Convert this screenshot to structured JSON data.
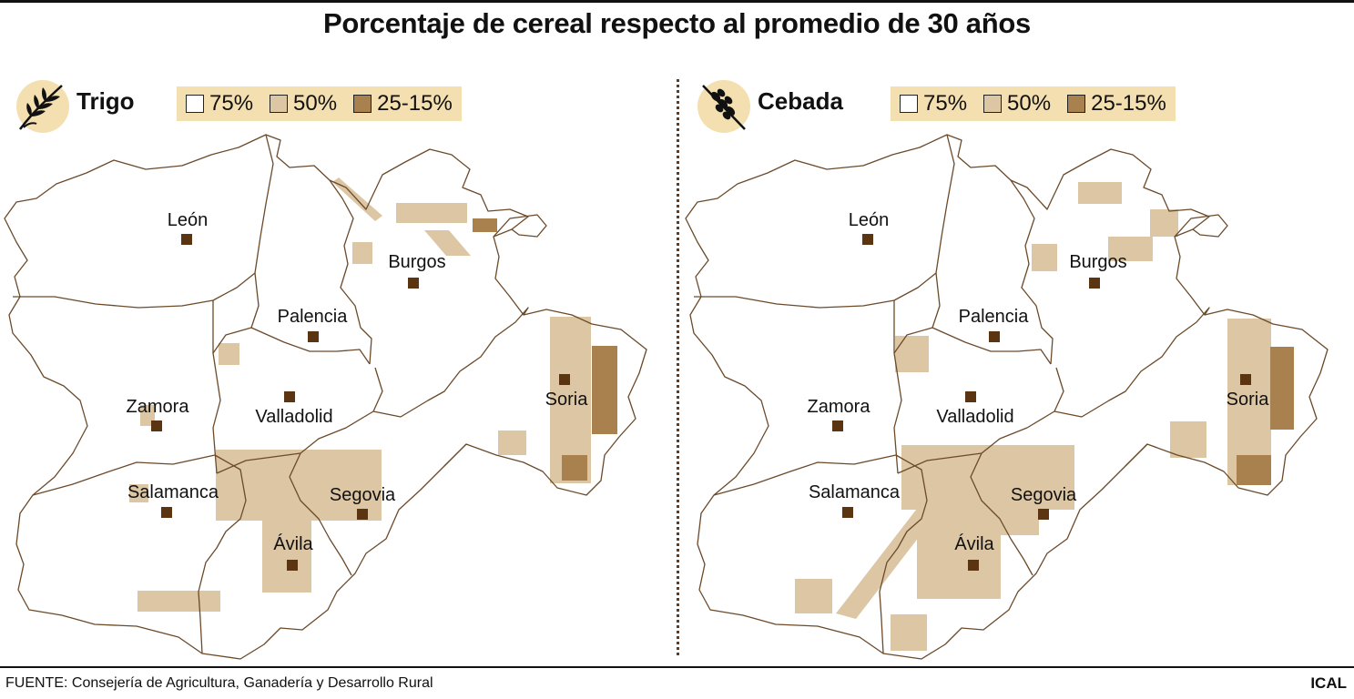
{
  "title": "Porcentaje de cereal respecto al promedio de 30 años",
  "colors": {
    "pct_75": "#ffffff",
    "pct_50": "#dcc6a4",
    "pct_25_15": "#a9814e",
    "marker": "#5b3512",
    "border": "#6b4a2a",
    "legend_bg": "#f3dfb0"
  },
  "legend": [
    {
      "label": "75%",
      "level": "pct_75"
    },
    {
      "label": "50%",
      "level": "pct_50"
    },
    {
      "label": "25-15%",
      "level": "pct_25_15"
    }
  ],
  "provinces": [
    "León",
    "Burgos",
    "Palencia",
    "Zamora",
    "Valladolid",
    "Soria",
    "Salamanca",
    "Segovia",
    "Ávila"
  ],
  "panels": [
    {
      "cereal": "Trigo",
      "icon": "wheat-icon"
    },
    {
      "cereal": "Cebada",
      "icon": "barley-icon"
    }
  ],
  "source": "FUENTE: Consejería de Agricultura, Ganadería y Desarrollo Rural",
  "credit": "ICAL"
}
